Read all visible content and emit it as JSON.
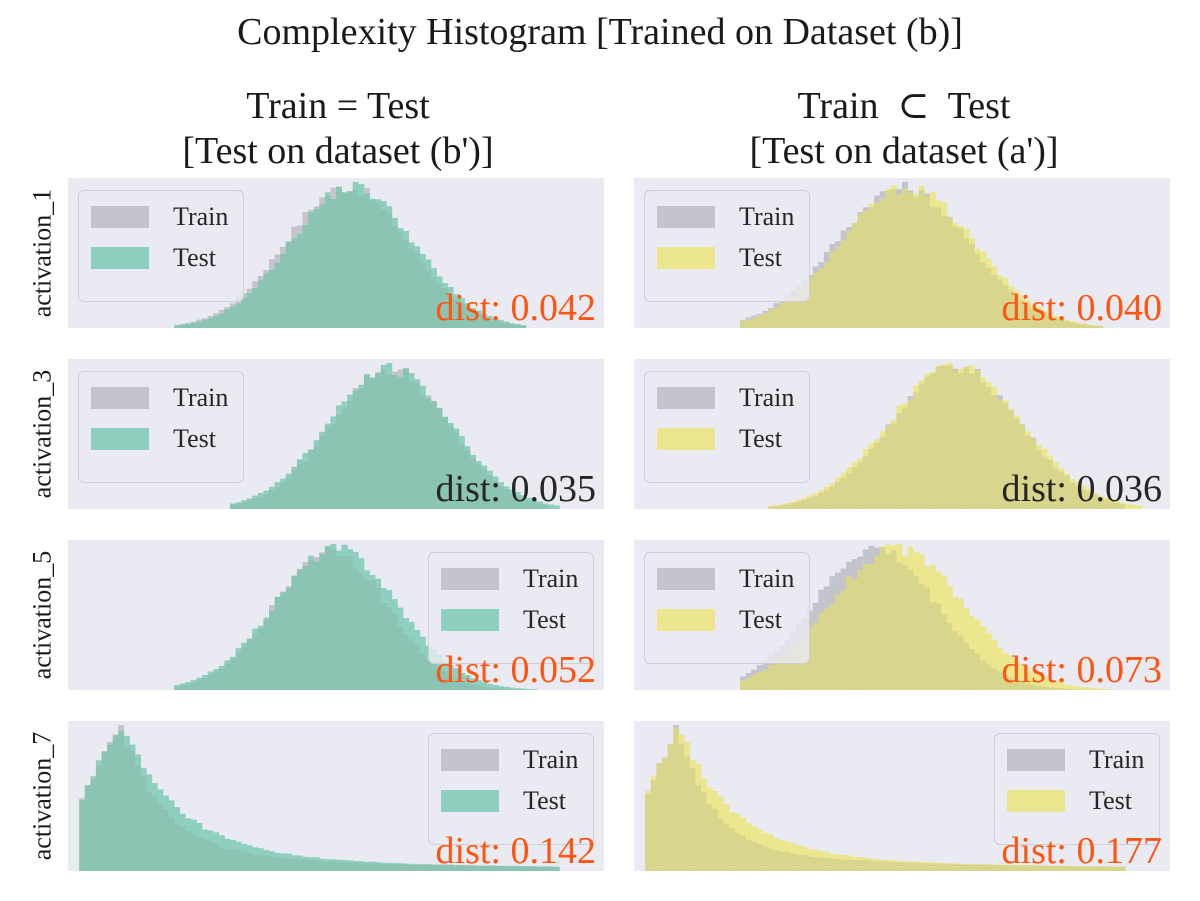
{
  "figure": {
    "title": "Complexity Histogram [Trained on Dataset (b)]",
    "columns": [
      {
        "line1": "Train = Test",
        "line2": "[Test on dataset (b')]"
      },
      {
        "line1": "Train  ⊂  Test",
        "line2": "[Test on dataset (a')]"
      }
    ],
    "rows": [
      "activation_1",
      "activation_3",
      "activation_5",
      "activation_7"
    ],
    "legend": {
      "train": "Train",
      "test": "Test"
    }
  },
  "colors": {
    "background": "#eaeaf2",
    "train": "#c4c4cc",
    "test_left": "#8fcfbf",
    "test_right": "#ece78e",
    "overlap_left": "#8cc4b4",
    "overlap_right": "#d8d58c",
    "dist_highlight": "#ff5511",
    "dist_normal": "#262626"
  },
  "chart_data": [
    {
      "type": "bar",
      "row": "activation_1",
      "column": 0,
      "dist_text": "dist: 0.042",
      "dist_highlight": true,
      "legend_position": "upper left",
      "train": {
        "shape": "gaussian",
        "mu": 0.52,
        "sigma": 0.115,
        "range": [
          0.2,
          0.85
        ]
      },
      "test": {
        "shape": "gaussian",
        "mu": 0.53,
        "sigma": 0.115,
        "range": [
          0.2,
          0.85
        ]
      }
    },
    {
      "type": "bar",
      "row": "activation_1",
      "column": 1,
      "dist_text": "dist: 0.040",
      "dist_highlight": true,
      "legend_position": "upper left",
      "train": {
        "shape": "gaussian",
        "mu": 0.5,
        "sigma": 0.125,
        "range": [
          0.2,
          0.88
        ]
      },
      "test": {
        "shape": "gaussian",
        "mu": 0.51,
        "sigma": 0.125,
        "range": [
          0.2,
          0.88
        ]
      }
    },
    {
      "type": "bar",
      "row": "activation_3",
      "column": 0,
      "dist_text": "dist: 0.035",
      "dist_highlight": false,
      "legend_position": "upper left",
      "train": {
        "shape": "gaussian",
        "mu": 0.6,
        "sigma": 0.11,
        "range": [
          0.3,
          0.9
        ]
      },
      "test": {
        "shape": "gaussian",
        "mu": 0.6,
        "sigma": 0.115,
        "range": [
          0.3,
          0.92
        ]
      }
    },
    {
      "type": "bar",
      "row": "activation_3",
      "column": 1,
      "dist_text": "dist: 0.036",
      "dist_highlight": false,
      "legend_position": "upper left",
      "train": {
        "shape": "gaussian",
        "mu": 0.6,
        "sigma": 0.12,
        "range": [
          0.25,
          0.92
        ]
      },
      "test": {
        "shape": "gaussian",
        "mu": 0.6,
        "sigma": 0.125,
        "range": [
          0.25,
          0.95
        ]
      }
    },
    {
      "type": "bar",
      "row": "activation_5",
      "column": 0,
      "dist_text": "dist: 0.052",
      "dist_highlight": true,
      "legend_position": "upper right",
      "train": {
        "shape": "gaussian",
        "mu": 0.49,
        "sigma": 0.105,
        "range": [
          0.2,
          0.86
        ]
      },
      "test": {
        "shape": "gaussian",
        "mu": 0.5,
        "sigma": 0.115,
        "range": [
          0.2,
          0.88
        ]
      }
    },
    {
      "type": "bar",
      "row": "activation_5",
      "column": 1,
      "dist_text": "dist: 0.073",
      "dist_highlight": true,
      "legend_position": "upper left",
      "train": {
        "shape": "gaussian",
        "mu": 0.45,
        "sigma": 0.115,
        "range": [
          0.2,
          0.86
        ]
      },
      "test": {
        "shape": "gaussian",
        "mu": 0.49,
        "sigma": 0.125,
        "range": [
          0.2,
          0.9
        ]
      }
    },
    {
      "type": "bar",
      "row": "activation_7",
      "column": 0,
      "dist_text": "dist: 0.142",
      "dist_highlight": true,
      "legend_position": "upper right",
      "train": {
        "shape": "skewed",
        "peak": 0.1,
        "k": 2.2,
        "range": [
          0.02,
          0.92
        ]
      },
      "test": {
        "shape": "skewed",
        "peak": 0.1,
        "k": 1.6,
        "range": [
          0.02,
          0.92
        ]
      }
    },
    {
      "type": "bar",
      "row": "activation_7",
      "column": 1,
      "dist_text": "dist: 0.177",
      "dist_highlight": true,
      "legend_position": "upper right",
      "train": {
        "shape": "skewed",
        "peak": 0.08,
        "k": 2.6,
        "range": [
          0.02,
          0.92
        ]
      },
      "test": {
        "shape": "skewed",
        "peak": 0.08,
        "k": 1.7,
        "range": [
          0.02,
          0.92
        ]
      }
    }
  ]
}
